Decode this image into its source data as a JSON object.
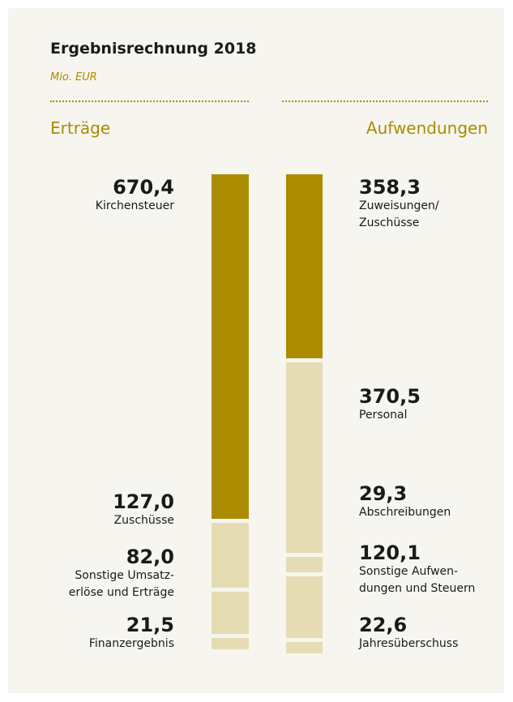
{
  "chart_data": {
    "type": "stacked-column",
    "title": "Ergebnisrechnung 2018",
    "subtitle": "Mio. EUR",
    "series": [
      {
        "name": "Erträge",
        "values": [
          670.4,
          127.0,
          82.0,
          21.5
        ],
        "value_labels": [
          "670,4",
          "127,0",
          "82,0",
          "21,5"
        ],
        "labels": [
          "Kirchensteuer",
          "Zuschüsse",
          "Sonstige Umsatz-\nerlöse und Erträge",
          "Finanzergebnis"
        ],
        "colors": [
          "#ab8c00",
          "#e6dcb4",
          "#e6dcb4",
          "#e6dcb4"
        ]
      },
      {
        "name": "Aufwendungen",
        "values": [
          358.3,
          370.5,
          29.3,
          120.1,
          22.6
        ],
        "value_labels": [
          "358,3",
          "370,5",
          "29,3",
          "120,1",
          "22,6"
        ],
        "labels": [
          "Zuweisungen/\nZuschüsse",
          "Personal",
          "Abschreibungen",
          "Sonstige Aufwen-\ndungen und Steuern",
          "Jahresüberschuss"
        ],
        "colors": [
          "#ab8c00",
          "#e6dcb4",
          "#e6dcb4",
          "#e6dcb4",
          "#e6dcb4"
        ]
      }
    ]
  }
}
